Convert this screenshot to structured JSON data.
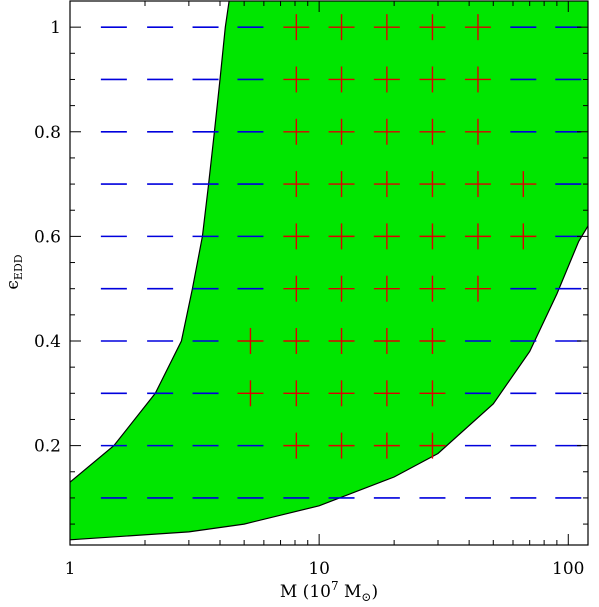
{
  "chart_data": {
    "type": "scatter",
    "title": "",
    "xlabel": {
      "prefix": "M (10",
      "exponent": "7",
      "suffix": " M",
      "subscript": "⊙",
      "closing": ")"
    },
    "ylabel": {
      "symbol": "ϵ",
      "subscript": "EDD"
    },
    "x_scale": "log",
    "xlim": [
      1,
      120
    ],
    "ylim": [
      0.01,
      1.05
    ],
    "x_ticks": [
      {
        "value": 1,
        "label": "1"
      },
      {
        "value": 10,
        "label": "10"
      },
      {
        "value": 100,
        "label": "100"
      }
    ],
    "y_ticks": [
      {
        "value": 0.2,
        "label": "0.2"
      },
      {
        "value": 0.4,
        "label": "0.4"
      },
      {
        "value": 0.6,
        "label": "0.6"
      },
      {
        "value": 0.8,
        "label": "0.8"
      },
      {
        "value": 1.0,
        "label": "1"
      }
    ],
    "grid_x": [
      1.5,
      2.3,
      3.5,
      5.3,
      8.1,
      12.3,
      18.7,
      28.5,
      43.4,
      66,
      100
    ],
    "grid_y": [
      0.1,
      0.2,
      0.3,
      0.4,
      0.5,
      0.6,
      0.7,
      0.8,
      0.9,
      1.0
    ],
    "region": {
      "color": "#00e600",
      "upper_boundary": [
        [
          1,
          0.13
        ],
        [
          1.5,
          0.2
        ],
        [
          2.2,
          0.3
        ],
        [
          2.8,
          0.4
        ],
        [
          3.1,
          0.5
        ],
        [
          3.4,
          0.6
        ],
        [
          3.6,
          0.7
        ],
        [
          3.8,
          0.8
        ],
        [
          4.0,
          0.9
        ],
        [
          4.2,
          1.0
        ],
        [
          4.35,
          1.05
        ]
      ],
      "lower_boundary": [
        [
          1,
          0.02
        ],
        [
          3,
          0.035
        ],
        [
          5,
          0.05
        ],
        [
          10,
          0.085
        ],
        [
          20,
          0.14
        ],
        [
          30,
          0.185
        ],
        [
          50,
          0.28
        ],
        [
          70,
          0.38
        ],
        [
          90,
          0.49
        ],
        [
          110,
          0.59
        ],
        [
          120,
          0.62
        ]
      ]
    },
    "series": [
      {
        "marker": "plus",
        "color": "#dd0000",
        "points": [
          [
            8.1,
            1.0
          ],
          [
            12.3,
            1.0
          ],
          [
            18.7,
            1.0
          ],
          [
            28.5,
            1.0
          ],
          [
            43.4,
            1.0
          ],
          [
            8.1,
            0.9
          ],
          [
            12.3,
            0.9
          ],
          [
            18.7,
            0.9
          ],
          [
            28.5,
            0.9
          ],
          [
            43.4,
            0.9
          ],
          [
            8.1,
            0.8
          ],
          [
            12.3,
            0.8
          ],
          [
            18.7,
            0.8
          ],
          [
            28.5,
            0.8
          ],
          [
            43.4,
            0.8
          ],
          [
            8.1,
            0.7
          ],
          [
            12.3,
            0.7
          ],
          [
            18.7,
            0.7
          ],
          [
            28.5,
            0.7
          ],
          [
            43.4,
            0.7
          ],
          [
            66,
            0.7
          ],
          [
            8.1,
            0.6
          ],
          [
            12.3,
            0.6
          ],
          [
            18.7,
            0.6
          ],
          [
            28.5,
            0.6
          ],
          [
            43.4,
            0.6
          ],
          [
            66,
            0.6
          ],
          [
            8.1,
            0.5
          ],
          [
            12.3,
            0.5
          ],
          [
            18.7,
            0.5
          ],
          [
            28.5,
            0.5
          ],
          [
            43.4,
            0.5
          ],
          [
            5.3,
            0.4
          ],
          [
            8.1,
            0.4
          ],
          [
            12.3,
            0.4
          ],
          [
            18.7,
            0.4
          ],
          [
            28.5,
            0.4
          ],
          [
            5.3,
            0.3
          ],
          [
            8.1,
            0.3
          ],
          [
            12.3,
            0.3
          ],
          [
            18.7,
            0.3
          ],
          [
            28.5,
            0.3
          ],
          [
            8.1,
            0.2
          ],
          [
            12.3,
            0.2
          ],
          [
            18.7,
            0.2
          ],
          [
            28.5,
            0.2
          ]
        ]
      },
      {
        "marker": "dash",
        "color": "#0000dd",
        "points": "grid_minus_plus"
      }
    ]
  }
}
